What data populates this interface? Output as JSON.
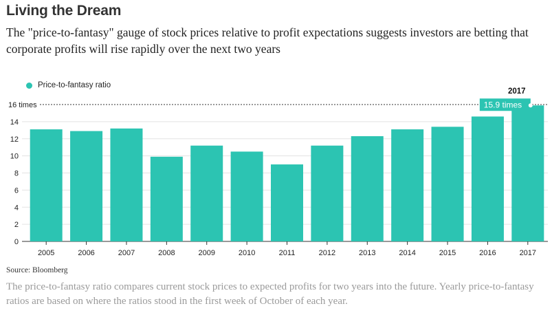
{
  "header": {
    "title": "Living the Dream",
    "subtitle": "The \"price-to-fantasy\" gauge of stock prices relative to profit expectations suggests investors are betting that corporate profits will rise rapidly over the next two years"
  },
  "legend": {
    "label": "Price-to-fantasy ratio",
    "color": "#2cc4b2"
  },
  "chart_data": {
    "type": "bar",
    "categories": [
      "2005",
      "2006",
      "2007",
      "2008",
      "2009",
      "2010",
      "2011",
      "2012",
      "2013",
      "2014",
      "2015",
      "2016",
      "2017"
    ],
    "series": [
      {
        "name": "Price-to-fantasy ratio",
        "values": [
          13.1,
          12.9,
          13.2,
          9.9,
          11.2,
          10.5,
          9.0,
          11.2,
          12.3,
          13.1,
          13.4,
          14.6,
          15.9
        ],
        "color": "#2cc4b2"
      }
    ],
    "ylim": [
      0,
      16
    ],
    "yticks": [
      "0",
      "2",
      "4",
      "6",
      "8",
      "10",
      "12",
      "14",
      "16 times"
    ],
    "grid": true,
    "reference_line": {
      "value": 16,
      "style": "dotted"
    },
    "annotation": {
      "year": "2017",
      "label": "15.9 times"
    }
  },
  "footer": {
    "source": "Source: Bloomberg",
    "note": "The price-to-fantasy ratio compares current stock prices to expected profits for two years into the future. Yearly price-to-fantasy ratios are based on where the ratios stood in the first week of October of each year."
  }
}
